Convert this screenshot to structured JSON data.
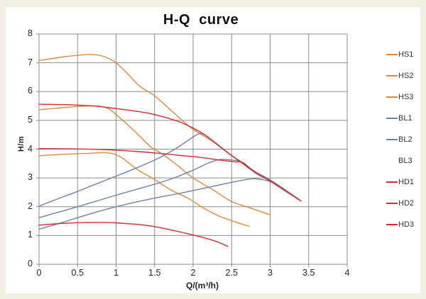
{
  "title": "H-Q  curve",
  "colors": {
    "orange": "#E08A3C",
    "blue": "#6D84A4",
    "red": "#D32B2F",
    "grid": "#8C8C8C",
    "text": "#262626",
    "outer_background": "#F3EFE5",
    "panel_background": "#FFFFFF"
  },
  "legend": [
    {
      "label": "HS1",
      "color": "#E08A3C",
      "sample": true
    },
    {
      "label": "HS2",
      "color": "#E08A3C",
      "sample": true
    },
    {
      "label": "HS3",
      "color": "#E08A3C",
      "sample": true
    },
    {
      "label": "BL1",
      "color": "#6D84A4",
      "sample": true
    },
    {
      "label": "BL2",
      "color": "#6D84A4",
      "sample": true
    },
    {
      "label": "BL3",
      "color": "#6D84A4",
      "sample": false
    },
    {
      "label": "HD1",
      "color": "#D32B2F",
      "sample": true
    },
    {
      "label": "HD2",
      "color": "#D32B2F",
      "sample": true
    },
    {
      "label": "HD3",
      "color": "#D32B2F",
      "sample": true
    }
  ],
  "chart_data": {
    "type": "line",
    "title": "H-Q  curve",
    "xlabel": "Q/(m³/h)",
    "ylabel": "H/m",
    "xlim": [
      0,
      4
    ],
    "ylim": [
      0,
      8
    ],
    "x_ticks": [
      "0",
      "0.5",
      "1",
      "1.5",
      "2",
      "2.5",
      "3",
      "3.5",
      "4"
    ],
    "y_ticks": [
      "0",
      "1",
      "2",
      "3",
      "4",
      "5",
      "6",
      "7",
      "8"
    ],
    "grid": true,
    "x_grid_step": 0.5,
    "y_grid_step": 1,
    "legend_position": "right",
    "series": [
      {
        "name": "HS1",
        "color": "#E08A3C",
        "points": [
          [
            0,
            7.08
          ],
          [
            0.3,
            7.2
          ],
          [
            0.5,
            7.26
          ],
          [
            0.66,
            7.29
          ],
          [
            0.8,
            7.25
          ],
          [
            0.92,
            7.13
          ],
          [
            1.0,
            7.0
          ],
          [
            1.15,
            6.62
          ],
          [
            1.3,
            6.2
          ],
          [
            1.5,
            5.85
          ],
          [
            1.7,
            5.38
          ],
          [
            1.9,
            4.9
          ],
          [
            2.05,
            4.6
          ],
          [
            2.15,
            4.44
          ],
          [
            2.3,
            4.18
          ],
          [
            2.45,
            3.87
          ],
          [
            2.62,
            3.55
          ],
          [
            2.8,
            3.2
          ],
          [
            3.0,
            2.9
          ],
          [
            3.2,
            2.55
          ],
          [
            3.4,
            2.2
          ]
        ]
      },
      {
        "name": "HS2",
        "color": "#E08A3C",
        "points": [
          [
            0,
            5.37
          ],
          [
            0.3,
            5.44
          ],
          [
            0.55,
            5.49
          ],
          [
            0.75,
            5.5
          ],
          [
            0.9,
            5.41
          ],
          [
            1.0,
            5.2
          ],
          [
            1.15,
            4.85
          ],
          [
            1.3,
            4.47
          ],
          [
            1.45,
            4.08
          ],
          [
            1.6,
            3.83
          ],
          [
            1.8,
            3.43
          ],
          [
            2.0,
            3.0
          ],
          [
            2.25,
            2.6
          ],
          [
            2.5,
            2.18
          ],
          [
            2.75,
            1.95
          ],
          [
            3.0,
            1.72
          ]
        ]
      },
      {
        "name": "HS3",
        "color": "#E08A3C",
        "points": [
          [
            0,
            3.77
          ],
          [
            0.3,
            3.82
          ],
          [
            0.6,
            3.85
          ],
          [
            0.9,
            3.87
          ],
          [
            1.05,
            3.74
          ],
          [
            1.15,
            3.55
          ],
          [
            1.3,
            3.25
          ],
          [
            1.5,
            2.95
          ],
          [
            1.7,
            2.6
          ],
          [
            1.95,
            2.27
          ],
          [
            2.15,
            1.93
          ],
          [
            2.35,
            1.66
          ],
          [
            2.5,
            1.52
          ],
          [
            2.6,
            1.42
          ],
          [
            2.73,
            1.32
          ]
        ]
      },
      {
        "name": "BL1",
        "color": "#6D84A4",
        "points": [
          [
            0,
            2.02
          ],
          [
            0.25,
            2.28
          ],
          [
            0.5,
            2.53
          ],
          [
            0.75,
            2.8
          ],
          [
            1.0,
            3.06
          ],
          [
            1.25,
            3.33
          ],
          [
            1.5,
            3.62
          ],
          [
            1.7,
            3.9
          ],
          [
            1.85,
            4.15
          ],
          [
            2.0,
            4.42
          ],
          [
            2.1,
            4.55
          ],
          [
            2.2,
            4.4
          ],
          [
            2.35,
            4.08
          ],
          [
            2.5,
            3.78
          ],
          [
            2.62,
            3.57
          ],
          [
            2.8,
            3.23
          ],
          [
            3.0,
            2.93
          ],
          [
            3.2,
            2.58
          ],
          [
            3.38,
            2.24
          ]
        ]
      },
      {
        "name": "BL2",
        "color": "#6D84A4",
        "points": [
          [
            0,
            1.62
          ],
          [
            0.5,
            2.0
          ],
          [
            1.0,
            2.4
          ],
          [
            1.5,
            2.78
          ],
          [
            1.75,
            3.0
          ],
          [
            2.0,
            3.27
          ],
          [
            2.2,
            3.52
          ],
          [
            2.35,
            3.64
          ],
          [
            2.5,
            3.62
          ],
          [
            2.62,
            3.56
          ],
          [
            2.8,
            3.21
          ],
          [
            3.0,
            2.91
          ],
          [
            3.2,
            2.56
          ],
          [
            3.36,
            2.26
          ]
        ]
      },
      {
        "name": "BL3",
        "color": "#6D84A4",
        "points": [
          [
            0,
            1.22
          ],
          [
            0.3,
            1.45
          ],
          [
            0.6,
            1.7
          ],
          [
            1.0,
            2.0
          ],
          [
            1.5,
            2.3
          ],
          [
            1.8,
            2.45
          ],
          [
            2.1,
            2.62
          ],
          [
            2.4,
            2.79
          ],
          [
            2.6,
            2.9
          ],
          [
            2.78,
            2.97
          ],
          [
            2.92,
            2.93
          ],
          [
            3.05,
            2.82
          ],
          [
            3.2,
            2.58
          ],
          [
            3.3,
            2.38
          ]
        ]
      },
      {
        "name": "HD1",
        "color": "#D32B2F",
        "points": [
          [
            0,
            5.56
          ],
          [
            0.4,
            5.54
          ],
          [
            0.7,
            5.5
          ],
          [
            1.0,
            5.41
          ],
          [
            1.3,
            5.3
          ],
          [
            1.5,
            5.2
          ],
          [
            1.8,
            4.97
          ],
          [
            2.0,
            4.73
          ],
          [
            2.15,
            4.5
          ],
          [
            2.3,
            4.2
          ],
          [
            2.45,
            3.88
          ],
          [
            2.62,
            3.55
          ],
          [
            2.8,
            3.2
          ],
          [
            3.0,
            2.9
          ],
          [
            3.2,
            2.55
          ],
          [
            3.4,
            2.2
          ]
        ]
      },
      {
        "name": "HD2",
        "color": "#D32B2F",
        "points": [
          [
            0,
            4.02
          ],
          [
            0.4,
            4.01
          ],
          [
            0.8,
            3.99
          ],
          [
            1.2,
            3.93
          ],
          [
            1.5,
            3.87
          ],
          [
            1.8,
            3.79
          ],
          [
            2.1,
            3.71
          ],
          [
            2.35,
            3.62
          ],
          [
            2.55,
            3.56
          ],
          [
            2.65,
            3.53
          ],
          [
            2.8,
            3.19
          ],
          [
            3.0,
            2.89
          ],
          [
            3.2,
            2.54
          ],
          [
            3.4,
            2.2
          ]
        ]
      },
      {
        "name": "HD3",
        "color": "#D32B2F",
        "points": [
          [
            0,
            1.36
          ],
          [
            0.3,
            1.42
          ],
          [
            0.6,
            1.45
          ],
          [
            0.9,
            1.45
          ],
          [
            1.1,
            1.42
          ],
          [
            1.3,
            1.38
          ],
          [
            1.5,
            1.31
          ],
          [
            1.7,
            1.2
          ],
          [
            1.9,
            1.08
          ],
          [
            2.1,
            0.95
          ],
          [
            2.25,
            0.84
          ],
          [
            2.35,
            0.74
          ],
          [
            2.45,
            0.62
          ]
        ]
      }
    ]
  }
}
